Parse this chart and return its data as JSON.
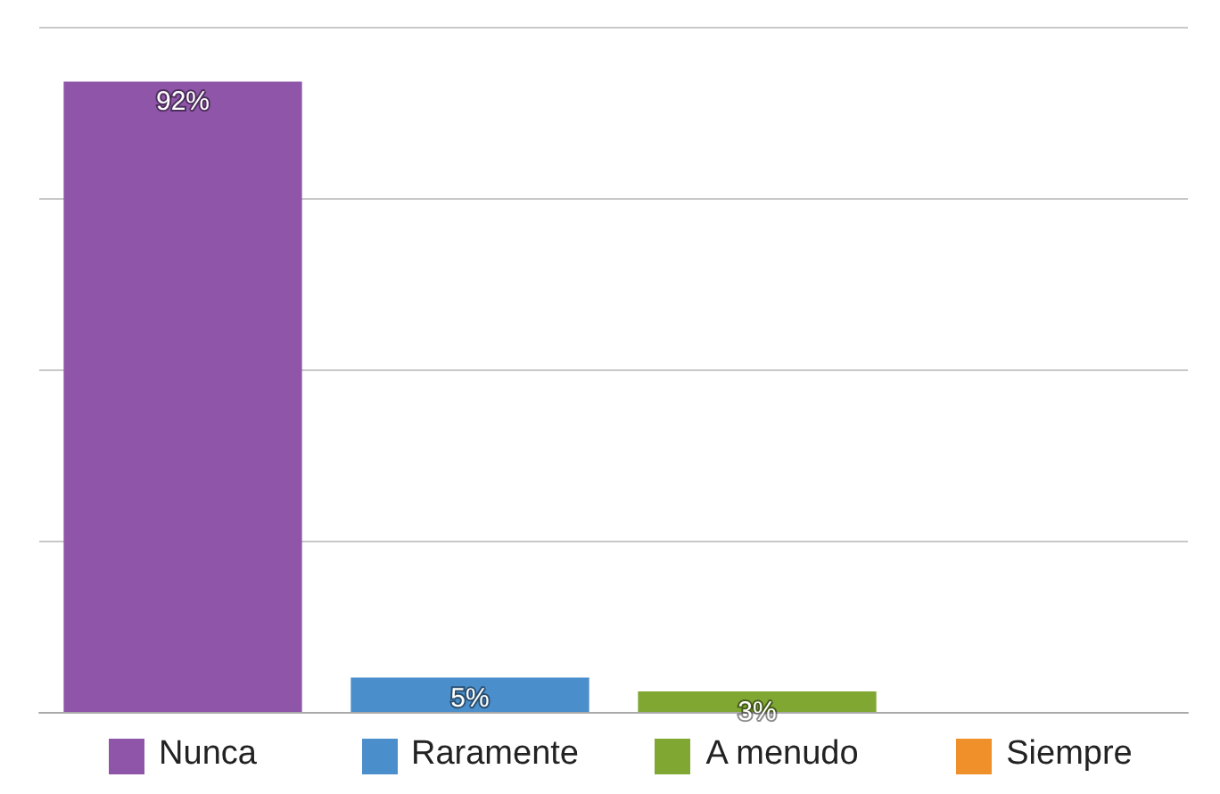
{
  "chart_data": {
    "type": "bar",
    "categories": [
      "Nunca",
      "Raramente",
      "A menudo",
      "Siempre"
    ],
    "values": [
      92,
      5,
      3,
      null
    ],
    "value_labels": [
      "92%",
      "5%",
      "3%",
      null
    ],
    "colors": [
      "#8e55a8",
      "#4a8ecb",
      "#7fa732",
      "#f0902a"
    ],
    "ylim": [
      0,
      100
    ],
    "yticks": [
      {
        "value": 0,
        "label": null
      },
      {
        "value": 25,
        "label": null
      },
      {
        "value": 50,
        "label": null
      },
      {
        "value": 75,
        "label": null
      },
      {
        "value": 100,
        "label": null
      }
    ],
    "tick_labels": "x",
    "grid": "y"
  }
}
